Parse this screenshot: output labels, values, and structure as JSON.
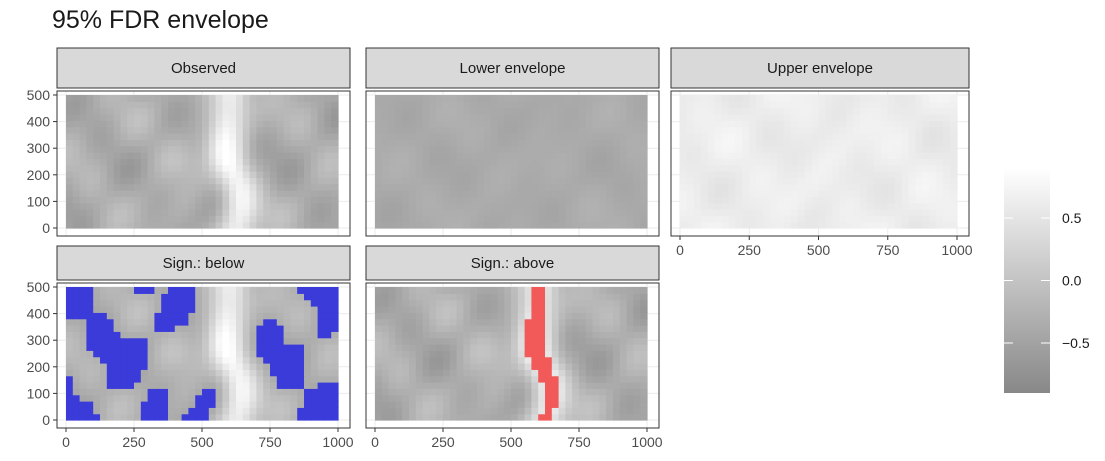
{
  "chart_data": {
    "type": "heatmap",
    "title": "95% FDR envelope",
    "xlabel": "",
    "ylabel": "",
    "xlim": [
      0,
      1000
    ],
    "ylim": [
      0,
      500
    ],
    "x_ticks": [
      "0",
      "250",
      "500",
      "750",
      "1000"
    ],
    "y_ticks": [
      "0",
      "100",
      "200",
      "300",
      "400",
      "500"
    ],
    "grid": true,
    "facets": [
      {
        "name": "Observed",
        "field": "observed"
      },
      {
        "name": "Lower envelope",
        "field": "lower"
      },
      {
        "name": "Upper envelope",
        "field": "upper"
      },
      {
        "name": "Sign.: below",
        "field": "observed",
        "highlight": "below",
        "highlight_color": "#3b3bd9"
      },
      {
        "name": "Sign.: above",
        "field": "observed",
        "highlight": "above",
        "highlight_color": "#f25a5a"
      }
    ],
    "legend": {
      "position": "right",
      "ticks": [
        "0.5",
        "0.0",
        "−0.5"
      ],
      "tick_values": [
        0.5,
        0.0,
        -0.5
      ],
      "range": [
        -0.9,
        0.9
      ],
      "color_low": "#888888",
      "color_high": "#ffffff"
    },
    "colors": {
      "strip_fill": "#d9d9d9",
      "panel_border": "#333333",
      "grid": "#ebebeb"
    }
  }
}
